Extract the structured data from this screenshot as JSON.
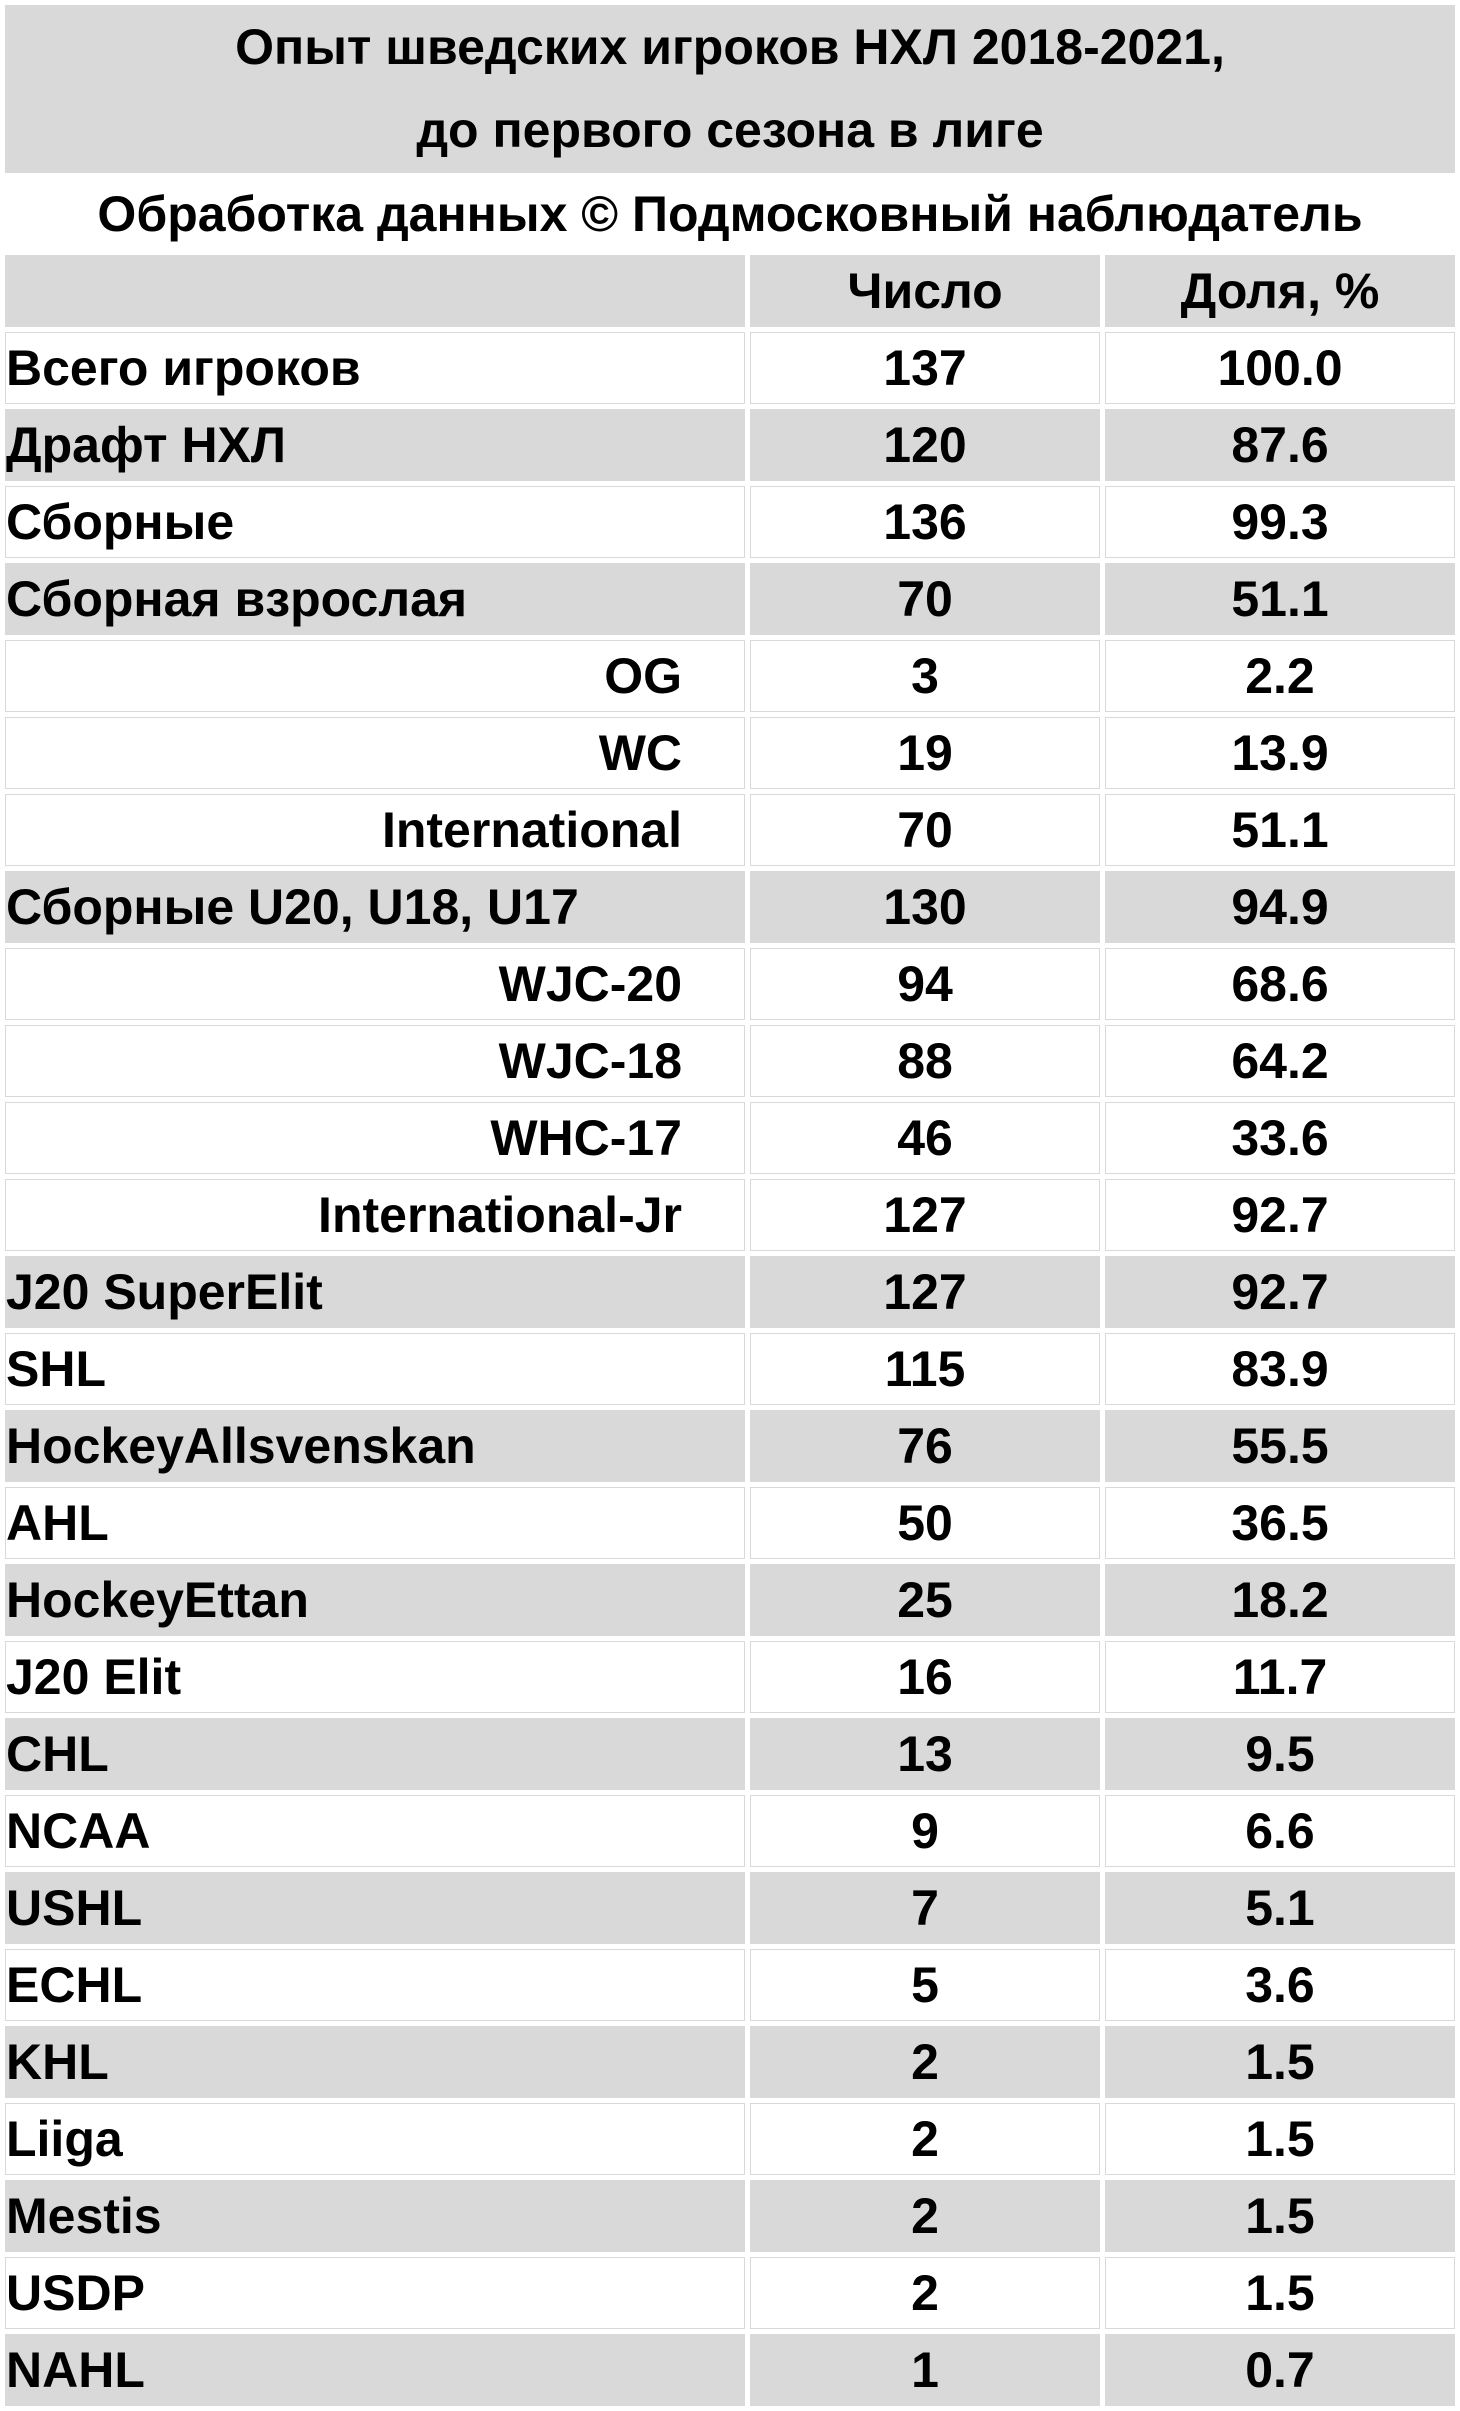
{
  "title": {
    "line1": "Опыт шведских игроков НХЛ 2018-2021,",
    "line2": "до первого сезона в лиге"
  },
  "credit": "Обработка данных © Подмосковный наблюдатель",
  "table": {
    "header": {
      "metric": "",
      "count": "Число",
      "share": "Доля, %"
    },
    "rows": [
      {
        "label": "Всего игроков",
        "count": "137",
        "share": "100.0",
        "indent": false,
        "shaded": false
      },
      {
        "label": "Драфт НХЛ",
        "count": "120",
        "share": "87.6",
        "indent": false,
        "shaded": true
      },
      {
        "label": "Сборные",
        "count": "136",
        "share": "99.3",
        "indent": false,
        "shaded": false
      },
      {
        "label": "Сборная взрослая",
        "count": "70",
        "share": "51.1",
        "indent": false,
        "shaded": true
      },
      {
        "label": "OG",
        "count": "3",
        "share": "2.2",
        "indent": true,
        "shaded": false
      },
      {
        "label": "WC",
        "count": "19",
        "share": "13.9",
        "indent": true,
        "shaded": false
      },
      {
        "label": "International",
        "count": "70",
        "share": "51.1",
        "indent": true,
        "shaded": false
      },
      {
        "label": "Сборные U20, U18, U17",
        "count": "130",
        "share": "94.9",
        "indent": false,
        "shaded": true
      },
      {
        "label": "WJC-20",
        "count": "94",
        "share": "68.6",
        "indent": true,
        "shaded": false
      },
      {
        "label": "WJC-18",
        "count": "88",
        "share": "64.2",
        "indent": true,
        "shaded": false
      },
      {
        "label": "WHC-17",
        "count": "46",
        "share": "33.6",
        "indent": true,
        "shaded": false
      },
      {
        "label": "International-Jr",
        "count": "127",
        "share": "92.7",
        "indent": true,
        "shaded": false
      },
      {
        "label": "J20 SuperElit",
        "count": "127",
        "share": "92.7",
        "indent": false,
        "shaded": true
      },
      {
        "label": "SHL",
        "count": "115",
        "share": "83.9",
        "indent": false,
        "shaded": false
      },
      {
        "label": "HockeyAllsvenskan",
        "count": "76",
        "share": "55.5",
        "indent": false,
        "shaded": true
      },
      {
        "label": "AHL",
        "count": "50",
        "share": "36.5",
        "indent": false,
        "shaded": false
      },
      {
        "label": "HockeyEttan",
        "count": "25",
        "share": "18.2",
        "indent": false,
        "shaded": true
      },
      {
        "label": "J20 Elit",
        "count": "16",
        "share": "11.7",
        "indent": false,
        "shaded": false
      },
      {
        "label": "CHL",
        "count": "13",
        "share": "9.5",
        "indent": false,
        "shaded": true
      },
      {
        "label": "NCAA",
        "count": "9",
        "share": "6.6",
        "indent": false,
        "shaded": false
      },
      {
        "label": "USHL",
        "count": "7",
        "share": "5.1",
        "indent": false,
        "shaded": true
      },
      {
        "label": "ECHL",
        "count": "5",
        "share": "3.6",
        "indent": false,
        "shaded": false
      },
      {
        "label": "KHL",
        "count": "2",
        "share": "1.5",
        "indent": false,
        "shaded": true
      },
      {
        "label": "Liiga",
        "count": "2",
        "share": "1.5",
        "indent": false,
        "shaded": false
      },
      {
        "label": "Mestis",
        "count": "2",
        "share": "1.5",
        "indent": false,
        "shaded": true
      },
      {
        "label": "USDP",
        "count": "2",
        "share": "1.5",
        "indent": false,
        "shaded": false
      },
      {
        "label": "NAHL",
        "count": "1",
        "share": "0.7",
        "indent": false,
        "shaded": true
      }
    ]
  },
  "colors": {
    "band": "#d9d9d9",
    "row_shaded": "#d9d9d9",
    "row_plain": "#ffffff",
    "gridline": "#d9d9d9",
    "text": "#000000",
    "background": "#ffffff"
  },
  "chart_data": {
    "type": "table",
    "title": "Опыт шведских игроков НХЛ 2018-2021, до первого сезона в лиге",
    "subtitle": "Обработка данных © Подмосковный наблюдатель",
    "columns": [
      "",
      "Число",
      "Доля, %"
    ],
    "rows": [
      [
        "Всего игроков",
        137,
        100.0
      ],
      [
        "Драфт НХЛ",
        120,
        87.6
      ],
      [
        "Сборные",
        136,
        99.3
      ],
      [
        "Сборная взрослая",
        70,
        51.1
      ],
      [
        "OG",
        3,
        2.2
      ],
      [
        "WC",
        19,
        13.9
      ],
      [
        "International",
        70,
        51.1
      ],
      [
        "Сборные U20, U18, U17",
        130,
        94.9
      ],
      [
        "WJC-20",
        94,
        68.6
      ],
      [
        "WJC-18",
        88,
        64.2
      ],
      [
        "WHC-17",
        46,
        33.6
      ],
      [
        "International-Jr",
        127,
        92.7
      ],
      [
        "J20 SuperElit",
        127,
        92.7
      ],
      [
        "SHL",
        115,
        83.9
      ],
      [
        "HockeyAllsvenskan",
        76,
        55.5
      ],
      [
        "AHL",
        50,
        36.5
      ],
      [
        "HockeyEttan",
        25,
        18.2
      ],
      [
        "J20 Elit",
        16,
        11.7
      ],
      [
        "CHL",
        13,
        9.5
      ],
      [
        "NCAA",
        9,
        6.6
      ],
      [
        "USHL",
        7,
        5.1
      ],
      [
        "ECHL",
        5,
        3.6
      ],
      [
        "KHL",
        2,
        1.5
      ],
      [
        "Liiga",
        2,
        1.5
      ],
      [
        "Mestis",
        2,
        1.5
      ],
      [
        "USDP",
        2,
        1.5
      ],
      [
        "NAHL",
        1,
        0.7
      ]
    ]
  }
}
